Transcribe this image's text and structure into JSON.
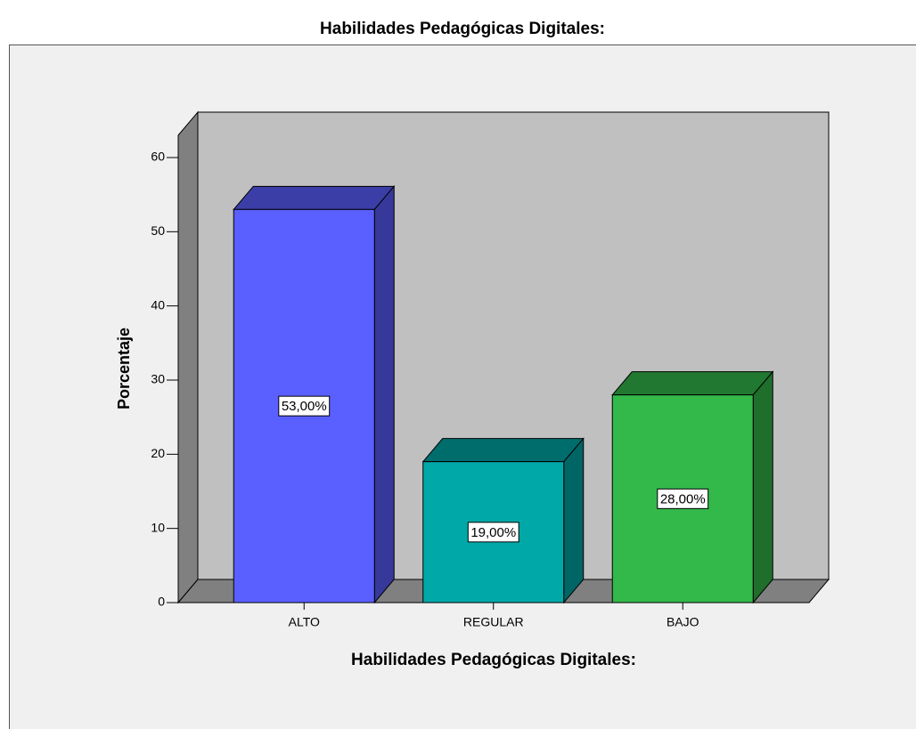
{
  "chart_data": {
    "type": "bar",
    "title": "Habilidades Pedagógicas Digitales:",
    "x_label": "Habilidades Pedagógicas Digitales:",
    "y_label": "Porcentaje",
    "categories": [
      "ALTO",
      "REGULAR",
      "BAJO"
    ],
    "values": [
      53,
      19,
      28
    ],
    "value_labels": [
      "53,00%",
      "19,00%",
      "28,00%"
    ],
    "colors": [
      "#5a5fff",
      "#00a8a8",
      "#33b84a"
    ],
    "ylim": [
      0,
      63
    ],
    "yticks": [
      0,
      10,
      20,
      30,
      40,
      50,
      60
    ]
  }
}
